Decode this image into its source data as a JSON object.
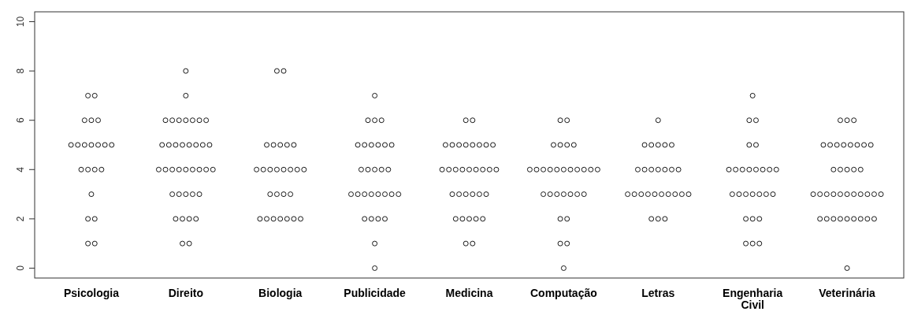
{
  "chart_data": {
    "type": "scatter",
    "categories": [
      "Psicologia",
      "Direito",
      "Biologia",
      "Publicidade",
      "Medicina",
      "Computação",
      "Letras",
      "Engenharia Civil",
      "Veterinária"
    ],
    "ylim": [
      -0.4,
      10.4
    ],
    "yticks": [
      0,
      2,
      4,
      6,
      8,
      10
    ],
    "marker": "circle",
    "grid": false,
    "series": [
      {
        "color": "#000000",
        "x": [
          "Psicologia",
          "Psicologia",
          "Psicologia",
          "Psicologia",
          "Psicologia",
          "Psicologia",
          "Psicologia",
          "Psicologia",
          "Psicologia",
          "Psicologia",
          "Psicologia",
          "Psicologia",
          "Psicologia",
          "Psicologia",
          "Psicologia",
          "Psicologia",
          "Psicologia",
          "Psicologia",
          "Psicologia",
          "Psicologia",
          "Psicologia",
          "Direito",
          "Direito",
          "Direito",
          "Direito",
          "Direito",
          "Direito",
          "Direito",
          "Direito",
          "Direito",
          "Direito",
          "Direito",
          "Direito",
          "Direito",
          "Direito",
          "Direito",
          "Direito",
          "Direito",
          "Direito",
          "Direito",
          "Direito",
          "Direito",
          "Direito",
          "Direito",
          "Direito",
          "Direito",
          "Direito",
          "Direito",
          "Direito",
          "Direito",
          "Direito",
          "Direito",
          "Direito",
          "Direito",
          "Direito",
          "Direito",
          "Direito",
          "Direito",
          "Biologia",
          "Biologia",
          "Biologia",
          "Biologia",
          "Biologia",
          "Biologia",
          "Biologia",
          "Biologia",
          "Biologia",
          "Biologia",
          "Biologia",
          "Biologia",
          "Biologia",
          "Biologia",
          "Biologia",
          "Biologia",
          "Biologia",
          "Biologia",
          "Biologia",
          "Biologia",
          "Biologia",
          "Biologia",
          "Biologia",
          "Biologia",
          "Biologia",
          "Biologia",
          "Publicidade",
          "Publicidade",
          "Publicidade",
          "Publicidade",
          "Publicidade",
          "Publicidade",
          "Publicidade",
          "Publicidade",
          "Publicidade",
          "Publicidade",
          "Publicidade",
          "Publicidade",
          "Publicidade",
          "Publicidade",
          "Publicidade",
          "Publicidade",
          "Publicidade",
          "Publicidade",
          "Publicidade",
          "Publicidade",
          "Publicidade",
          "Publicidade",
          "Publicidade",
          "Publicidade",
          "Publicidade",
          "Publicidade",
          "Publicidade",
          "Publicidade",
          "Publicidade",
          "Medicina",
          "Medicina",
          "Medicina",
          "Medicina",
          "Medicina",
          "Medicina",
          "Medicina",
          "Medicina",
          "Medicina",
          "Medicina",
          "Medicina",
          "Medicina",
          "Medicina",
          "Medicina",
          "Medicina",
          "Medicina",
          "Medicina",
          "Medicina",
          "Medicina",
          "Medicina",
          "Medicina",
          "Medicina",
          "Medicina",
          "Medicina",
          "Medicina",
          "Medicina",
          "Medicina",
          "Medicina",
          "Medicina",
          "Medicina",
          "Medicina",
          "Medicina",
          "Computação",
          "Computação",
          "Computação",
          "Computação",
          "Computação",
          "Computação",
          "Computação",
          "Computação",
          "Computação",
          "Computação",
          "Computação",
          "Computação",
          "Computação",
          "Computação",
          "Computação",
          "Computação",
          "Computação",
          "Computação",
          "Computação",
          "Computação",
          "Computação",
          "Computação",
          "Computação",
          "Computação",
          "Computação",
          "Computação",
          "Computação",
          "Computação",
          "Computação",
          "Letras",
          "Letras",
          "Letras",
          "Letras",
          "Letras",
          "Letras",
          "Letras",
          "Letras",
          "Letras",
          "Letras",
          "Letras",
          "Letras",
          "Letras",
          "Letras",
          "Letras",
          "Letras",
          "Letras",
          "Letras",
          "Letras",
          "Letras",
          "Letras",
          "Letras",
          "Letras",
          "Letras",
          "Letras",
          "Letras",
          "Engenharia Civil",
          "Engenharia Civil",
          "Engenharia Civil",
          "Engenharia Civil",
          "Engenharia Civil",
          "Engenharia Civil",
          "Engenharia Civil",
          "Engenharia Civil",
          "Engenharia Civil",
          "Engenharia Civil",
          "Engenharia Civil",
          "Engenharia Civil",
          "Engenharia Civil",
          "Engenharia Civil",
          "Engenharia Civil",
          "Engenharia Civil",
          "Engenharia Civil",
          "Engenharia Civil",
          "Engenharia Civil",
          "Engenharia Civil",
          "Engenharia Civil",
          "Engenharia Civil",
          "Engenharia Civil",
          "Engenharia Civil",
          "Engenharia Civil",
          "Engenharia Civil",
          "Veterinária",
          "Veterinária",
          "Veterinária",
          "Veterinária",
          "Veterinária",
          "Veterinária",
          "Veterinária",
          "Veterinária",
          "Veterinária",
          "Veterinária",
          "Veterinária",
          "Veterinária",
          "Veterinária",
          "Veterinária",
          "Veterinária",
          "Veterinária",
          "Veterinária",
          "Veterinária",
          "Veterinária",
          "Veterinária",
          "Veterinária",
          "Veterinária",
          "Veterinária",
          "Veterinária",
          "Veterinária",
          "Veterinária",
          "Veterinária",
          "Veterinária",
          "Veterinária",
          "Veterinária",
          "Veterinária",
          "Veterinária",
          "Veterinária",
          "Veterinária",
          "Veterinária",
          "Veterinária",
          "Veterinária"
        ],
        "values": [
          7,
          7,
          6,
          6,
          6,
          5,
          5,
          5,
          5,
          5,
          5,
          5,
          4,
          4,
          4,
          4,
          3,
          2,
          2,
          1,
          1,
          8,
          7,
          6,
          6,
          6,
          6,
          6,
          6,
          6,
          5,
          5,
          5,
          5,
          5,
          5,
          5,
          5,
          4,
          4,
          4,
          4,
          4,
          4,
          4,
          4,
          4,
          3,
          3,
          3,
          3,
          3,
          2,
          2,
          2,
          2,
          1,
          1,
          8,
          8,
          5,
          5,
          5,
          5,
          5,
          4,
          4,
          4,
          4,
          4,
          4,
          4,
          4,
          3,
          3,
          3,
          3,
          2,
          2,
          2,
          2,
          2,
          2,
          2,
          7,
          6,
          6,
          6,
          5,
          5,
          5,
          5,
          5,
          5,
          4,
          4,
          4,
          4,
          4,
          3,
          3,
          3,
          3,
          3,
          3,
          3,
          3,
          2,
          2,
          2,
          2,
          1,
          0,
          6,
          6,
          5,
          5,
          5,
          5,
          5,
          5,
          5,
          5,
          4,
          4,
          4,
          4,
          4,
          4,
          4,
          4,
          4,
          3,
          3,
          3,
          3,
          3,
          3,
          2,
          2,
          2,
          2,
          2,
          1,
          1,
          6,
          6,
          5,
          5,
          5,
          5,
          4,
          4,
          4,
          4,
          4,
          4,
          4,
          4,
          4,
          4,
          4,
          3,
          3,
          3,
          3,
          3,
          3,
          3,
          2,
          2,
          1,
          1,
          0,
          6,
          5,
          5,
          5,
          5,
          5,
          4,
          4,
          4,
          4,
          4,
          4,
          4,
          3,
          3,
          3,
          3,
          3,
          3,
          3,
          3,
          3,
          3,
          2,
          2,
          2,
          7,
          6,
          6,
          5,
          5,
          4,
          4,
          4,
          4,
          4,
          4,
          4,
          4,
          3,
          3,
          3,
          3,
          3,
          3,
          3,
          2,
          2,
          2,
          1,
          1,
          1,
          6,
          6,
          6,
          5,
          5,
          5,
          5,
          5,
          5,
          5,
          5,
          4,
          4,
          4,
          4,
          4,
          3,
          3,
          3,
          3,
          3,
          3,
          3,
          3,
          3,
          3,
          3,
          2,
          2,
          2,
          2,
          2,
          2,
          2,
          2,
          2,
          0
        ]
      }
    ]
  }
}
